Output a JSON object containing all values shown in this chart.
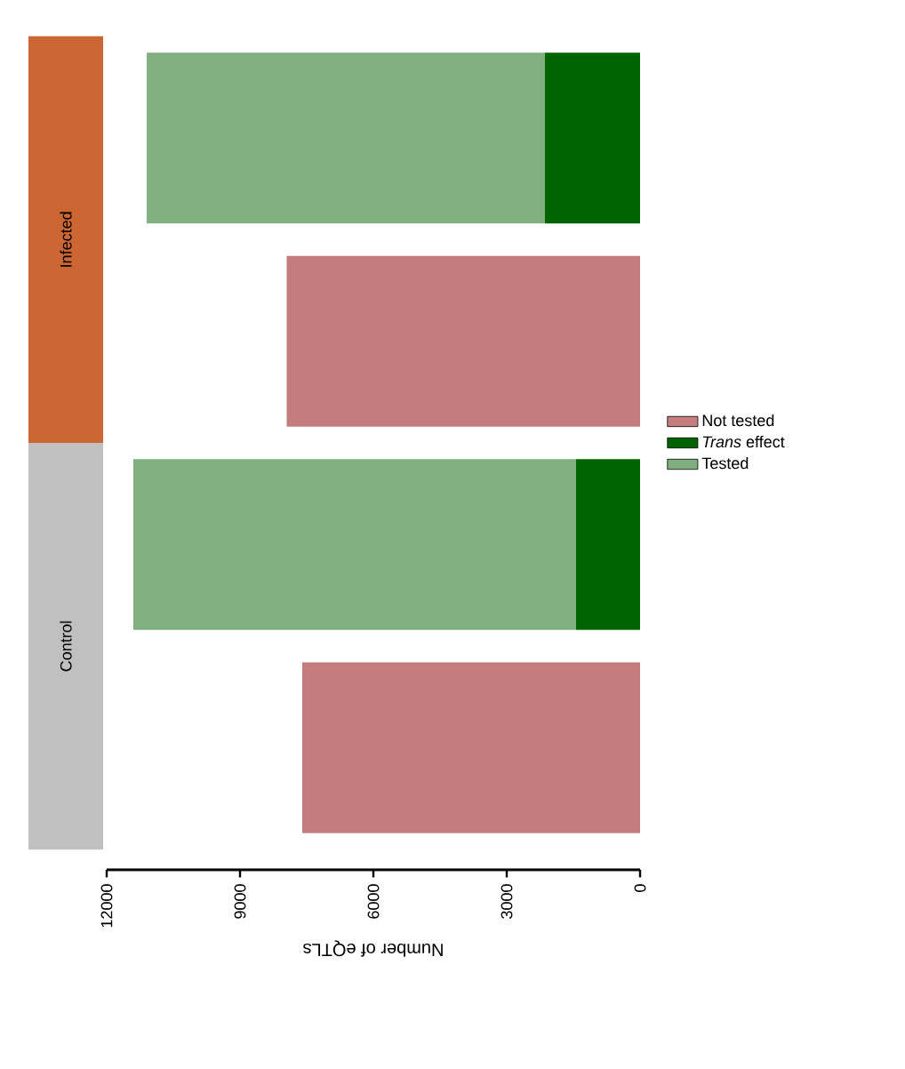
{
  "chart_data": {
    "type": "bar",
    "orientation": "horizontal",
    "stacked": true,
    "xlabel": "Number of eQTLs",
    "categories": [
      "Infected",
      null,
      "Control",
      null
    ],
    "series": [
      {
        "name": "Not tested",
        "color": "#c47c7c",
        "values": [
          null,
          7950,
          null,
          7600
        ]
      },
      {
        "name": "*Trans* effect",
        "color": "#006400",
        "values": [
          2150,
          null,
          1450,
          null
        ]
      },
      {
        "name": "Tested",
        "color": "#80b080",
        "values": [
          8950,
          null,
          9950,
          null
        ]
      }
    ],
    "xlim": [
      12000,
      0
    ],
    "xticks": [
      12000,
      9000,
      6000,
      3000,
      0
    ],
    "legend": "right"
  }
}
